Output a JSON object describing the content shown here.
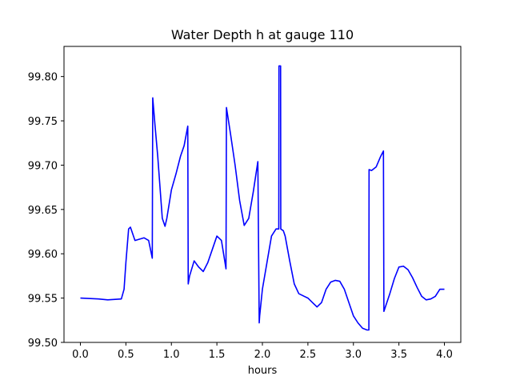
{
  "chart_data": {
    "type": "line",
    "title": "Water Depth h at gauge 110",
    "xlabel": "hours",
    "ylabel": "",
    "xlim": [
      -0.18,
      4.18
    ],
    "ylim": [
      99.5,
      99.834
    ],
    "xticks": [
      0.0,
      0.5,
      1.0,
      1.5,
      2.0,
      2.5,
      3.0,
      3.5,
      4.0
    ],
    "xtick_labels": [
      "0.0",
      "0.5",
      "1.0",
      "1.5",
      "2.0",
      "2.5",
      "3.0",
      "3.5",
      "4.0"
    ],
    "yticks": [
      99.5,
      99.55,
      99.6,
      99.65,
      99.7,
      99.75,
      99.8
    ],
    "ytick_labels": [
      "99.50",
      "99.55",
      "99.60",
      "99.65",
      "99.70",
      "99.75",
      "99.80"
    ],
    "grid": false,
    "colors": {
      "line": "#0000ff"
    },
    "series": [
      {
        "x": [
          0.0,
          0.2,
          0.3,
          0.45,
          0.48,
          0.5,
          0.53,
          0.55,
          0.6,
          0.7,
          0.75,
          0.79,
          0.795,
          0.82,
          0.85,
          0.9,
          0.93,
          0.95,
          1.0,
          1.05,
          1.1,
          1.14,
          1.18,
          1.185,
          1.2,
          1.25,
          1.3,
          1.35,
          1.4,
          1.45,
          1.5,
          1.55,
          1.6,
          1.605,
          1.65,
          1.7,
          1.75,
          1.8,
          1.85,
          1.9,
          1.95,
          1.965,
          1.97,
          2.0,
          2.05,
          2.1,
          2.15,
          2.18,
          2.182,
          2.2,
          2.202,
          2.23,
          2.25,
          2.3,
          2.35,
          2.4,
          2.5,
          2.55,
          2.6,
          2.65,
          2.7,
          2.75,
          2.8,
          2.85,
          2.9,
          2.95,
          3.0,
          3.05,
          3.1,
          3.15,
          3.17,
          3.172,
          3.2,
          3.25,
          3.3,
          3.33,
          3.335,
          3.4,
          3.45,
          3.5,
          3.55,
          3.6,
          3.65,
          3.7,
          3.75,
          3.8,
          3.85,
          3.9,
          3.95,
          4.0
        ],
        "y": [
          99.55,
          99.549,
          99.548,
          99.549,
          99.56,
          99.59,
          99.628,
          99.63,
          99.615,
          99.618,
          99.615,
          99.595,
          99.776,
          99.745,
          99.71,
          99.64,
          99.631,
          99.64,
          99.672,
          99.69,
          99.71,
          99.722,
          99.744,
          99.566,
          99.575,
          99.592,
          99.585,
          99.58,
          99.59,
          99.605,
          99.62,
          99.615,
          99.583,
          99.765,
          99.735,
          99.7,
          99.66,
          99.632,
          99.64,
          99.67,
          99.704,
          99.522,
          99.53,
          99.56,
          99.59,
          99.62,
          99.628,
          99.628,
          99.812,
          99.812,
          99.628,
          99.626,
          99.62,
          99.592,
          99.566,
          99.555,
          99.55,
          99.545,
          99.54,
          99.545,
          99.56,
          99.568,
          99.57,
          99.569,
          99.56,
          99.545,
          99.53,
          99.522,
          99.516,
          99.514,
          99.514,
          99.695,
          99.694,
          99.698,
          99.71,
          99.716,
          99.535,
          99.555,
          99.572,
          99.585,
          99.586,
          99.582,
          99.573,
          99.562,
          99.552,
          99.548,
          99.549,
          99.552,
          99.56,
          99.56
        ]
      }
    ]
  }
}
